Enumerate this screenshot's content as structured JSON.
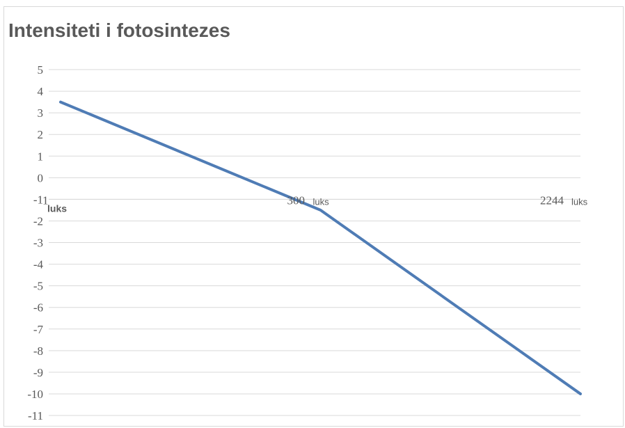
{
  "colors": {
    "line": "#4f7cb5",
    "grid": "#d9d9d9",
    "text": "#595959",
    "border": "#d9d9d9"
  },
  "chart_data": {
    "type": "line",
    "title": "Intensiteti i fotosintezes",
    "xlabel": "",
    "ylabel": "",
    "ylim": [
      -11,
      5
    ],
    "y_ticks": [
      5,
      4,
      3,
      2,
      1,
      0,
      -1,
      -2,
      -3,
      -4,
      -5,
      -6,
      -7,
      -8,
      -9,
      -10,
      -11
    ],
    "grid": true,
    "legend": "none",
    "categories": [
      {
        "value": "1",
        "unit": "luks"
      },
      {
        "value": "300",
        "unit": "luks"
      },
      {
        "value": "2244",
        "unit": "luks"
      }
    ],
    "x_axis_at": -1,
    "series": [
      {
        "values": [
          3.5,
          -1.5,
          -10
        ],
        "color": "#4f7cb5"
      }
    ]
  }
}
